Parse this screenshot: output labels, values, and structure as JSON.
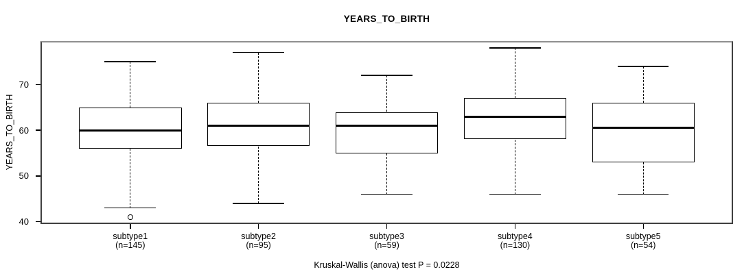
{
  "figure": {
    "title": "YEARS_TO_BIRTH",
    "y_axis_label": "YEARS_TO_BIRTH",
    "caption": "Kruskal-Wallis (anova) test P = 0.0228"
  },
  "chart_data": {
    "type": "boxplot",
    "title": "YEARS_TO_BIRTH",
    "ylabel": "YEARS_TO_BIRTH",
    "xlabel": "",
    "caption": "Kruskal-Wallis (anova) test P = 0.0228",
    "statistical_test": "Kruskal-Wallis (anova)",
    "p_value": "0.0228",
    "grid": false,
    "ylim": [
      39.5,
      79.5
    ],
    "xlim": [
      0.3,
      5.7
    ],
    "y_ticks": [
      40,
      50,
      60,
      70
    ],
    "categories": [
      "subtype1",
      "subtype2",
      "subtype3",
      "subtype4",
      "subtype5"
    ],
    "sample_sizes": [
      145,
      95,
      59,
      130,
      54
    ],
    "series": [
      {
        "name": "subtype1",
        "n_label": "(n=145)",
        "whisker_low": 43,
        "q1": 56,
        "median": 60,
        "q3": 65,
        "whisker_high": 75,
        "outliers": [
          41
        ]
      },
      {
        "name": "subtype2",
        "n_label": "(n=95)",
        "whisker_low": 44,
        "q1": 56.5,
        "median": 61,
        "q3": 66,
        "whisker_high": 77,
        "outliers": []
      },
      {
        "name": "subtype3",
        "n_label": "(n=59)",
        "whisker_low": 46,
        "q1": 55,
        "median": 61,
        "q3": 64,
        "whisker_high": 72,
        "outliers": []
      },
      {
        "name": "subtype4",
        "n_label": "(n=130)",
        "whisker_low": 46,
        "q1": 58,
        "median": 63,
        "q3": 67,
        "whisker_high": 78,
        "outliers": []
      },
      {
        "name": "subtype5",
        "n_label": "(n=54)",
        "whisker_low": 46,
        "q1": 53,
        "median": 60.5,
        "q3": 66,
        "whisker_high": 74,
        "outliers": []
      }
    ],
    "colors": {
      "box_fill": "#ffffff",
      "line": "#000000",
      "plot_border_top": "#8f8f8f",
      "plot_border_sides": "#3f3f3f",
      "background": "#ffffff"
    }
  }
}
